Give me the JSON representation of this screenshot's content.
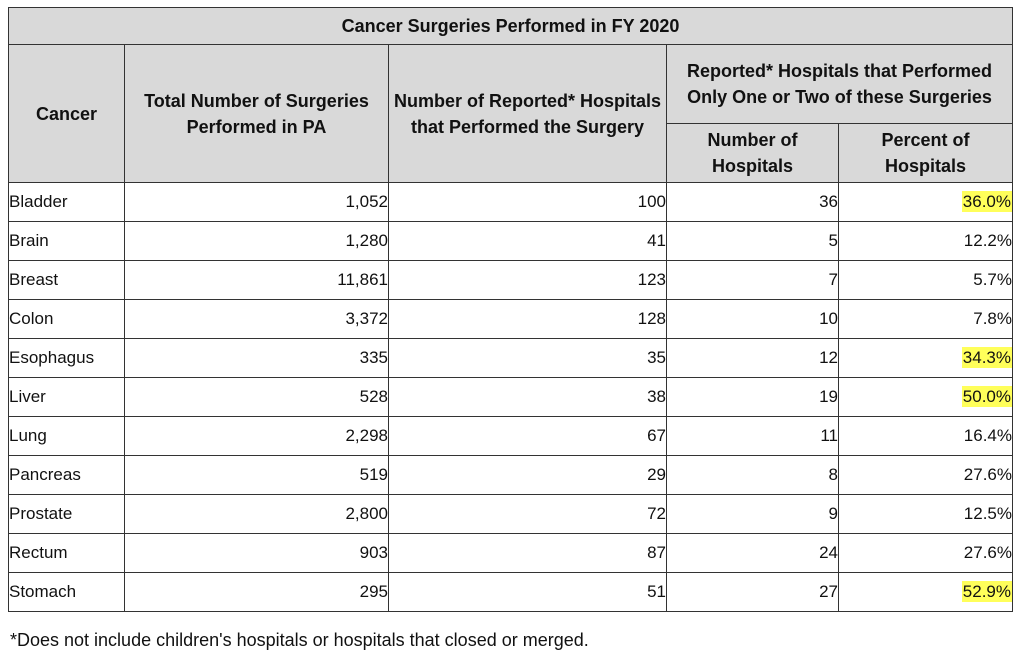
{
  "table": {
    "title": "Cancer Surgeries Performed in FY 2020",
    "headers": {
      "cancer": "Cancer",
      "total_surgeries": "Total Number of Surgeries Performed in PA",
      "num_hospitals": "Number of Reported* Hospitals that Performed the Surgery",
      "group": "Reported* Hospitals that Performed Only One or Two of these Surgeries",
      "group_number": "Number of Hospitals",
      "group_percent": "Percent of Hospitals"
    },
    "rows": [
      {
        "cancer": "Bladder",
        "total": "1,052",
        "hospitals": "100",
        "one_two_num": "36",
        "one_two_pct": "36.0%",
        "highlight": true
      },
      {
        "cancer": "Brain",
        "total": "1,280",
        "hospitals": "41",
        "one_two_num": "5",
        "one_two_pct": "12.2%",
        "highlight": false
      },
      {
        "cancer": "Breast",
        "total": "11,861",
        "hospitals": "123",
        "one_two_num": "7",
        "one_two_pct": "5.7%",
        "highlight": false
      },
      {
        "cancer": "Colon",
        "total": "3,372",
        "hospitals": "128",
        "one_two_num": "10",
        "one_two_pct": "7.8%",
        "highlight": false
      },
      {
        "cancer": "Esophagus",
        "total": "335",
        "hospitals": "35",
        "one_two_num": "12",
        "one_two_pct": "34.3%",
        "highlight": true
      },
      {
        "cancer": "Liver",
        "total": "528",
        "hospitals": "38",
        "one_two_num": "19",
        "one_two_pct": "50.0%",
        "highlight": true
      },
      {
        "cancer": "Lung",
        "total": "2,298",
        "hospitals": "67",
        "one_two_num": "11",
        "one_two_pct": "16.4%",
        "highlight": false
      },
      {
        "cancer": "Pancreas",
        "total": "519",
        "hospitals": "29",
        "one_two_num": "8",
        "one_two_pct": "27.6%",
        "highlight": false
      },
      {
        "cancer": "Prostate",
        "total": "2,800",
        "hospitals": "72",
        "one_two_num": "9",
        "one_two_pct": "12.5%",
        "highlight": false
      },
      {
        "cancer": "Rectum",
        "total": "903",
        "hospitals": "87",
        "one_two_num": "24",
        "one_two_pct": "27.6%",
        "highlight": false
      },
      {
        "cancer": "Stomach",
        "total": "295",
        "hospitals": "51",
        "one_two_num": "27",
        "one_two_pct": "52.9%",
        "highlight": true
      }
    ]
  },
  "footnote": "*Does not include children's hospitals or hospitals that closed or merged.",
  "colors": {
    "header_bg": "#d9d9d9",
    "highlight": "#ffff5a",
    "border": "#333333"
  }
}
